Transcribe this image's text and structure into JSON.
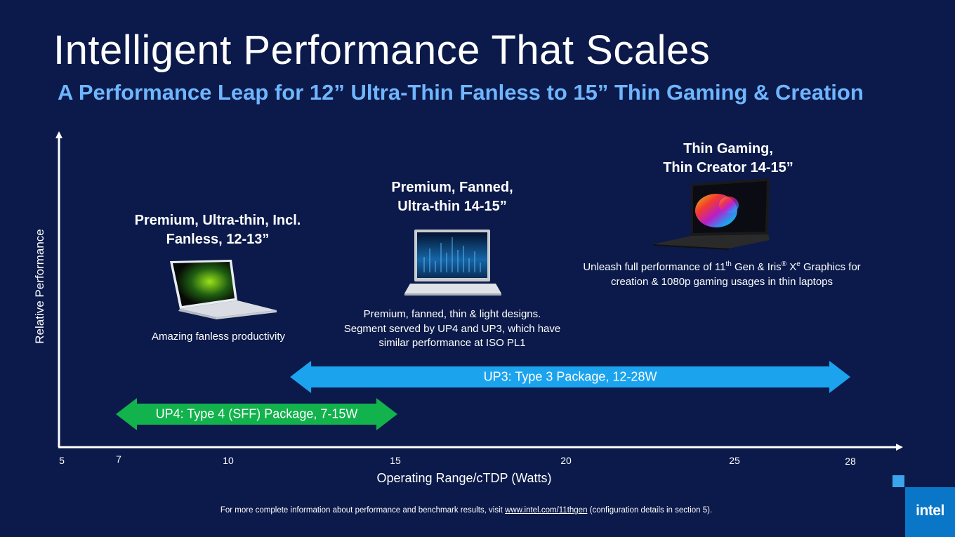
{
  "slide": {
    "title": "Intelligent Performance That Scales",
    "subtitle": "A Performance Leap for 12” Ultra-Thin Fanless to 15” Thin Gaming & Creation",
    "footnote": {
      "prefix": "For more complete information about performance and benchmark results, visit",
      "link": "www.intel.com/11thgen",
      "suffix": "(configuration details in section 5)."
    },
    "logo": "intel"
  },
  "chart_data": {
    "type": "range",
    "xlabel": "Operating Range/cTDP (Watts)",
    "ylabel": "Relative Performance",
    "x_ticks": [
      5,
      7,
      10,
      15,
      20,
      25,
      28
    ],
    "xlim": [
      5,
      28
    ],
    "ranges": [
      {
        "name": "UP4: Type 4 (SFF) Package, 7-15W",
        "min": 7,
        "max": 15,
        "color": "#12b24c"
      },
      {
        "name": "UP3: Type 3 Package, 12-28W",
        "min": 12,
        "max": 28,
        "color": "#1ba3ee"
      }
    ],
    "segments": [
      {
        "heading_line1": "Premium, Ultra-thin, Incl.",
        "heading_line2": "Fanless, 12-13”",
        "desc_lines": [
          "Amazing fanless productivity"
        ]
      },
      {
        "heading_line1": "Premium, Fanned,",
        "heading_line2": "Ultra-thin 14-15”",
        "desc_lines": [
          "Premium, fanned, thin & light designs.",
          "Segment served by UP4 and UP3, which have",
          "similar performance at ISO PL1"
        ]
      },
      {
        "heading_line1": "Thin Gaming,",
        "heading_line2": "Thin Creator 14-15”",
        "desc_line1_a": "Unleash full performance of 11",
        "desc_line1_sup1": "th",
        "desc_line1_b": " Gen & Iris",
        "desc_line1_sup2": "®",
        "desc_line1_c": " X",
        "desc_line1_sup3": "e",
        "desc_line1_d": " Graphics for",
        "desc_line2": "creation & 1080p gaming usages in thin laptops"
      }
    ]
  }
}
